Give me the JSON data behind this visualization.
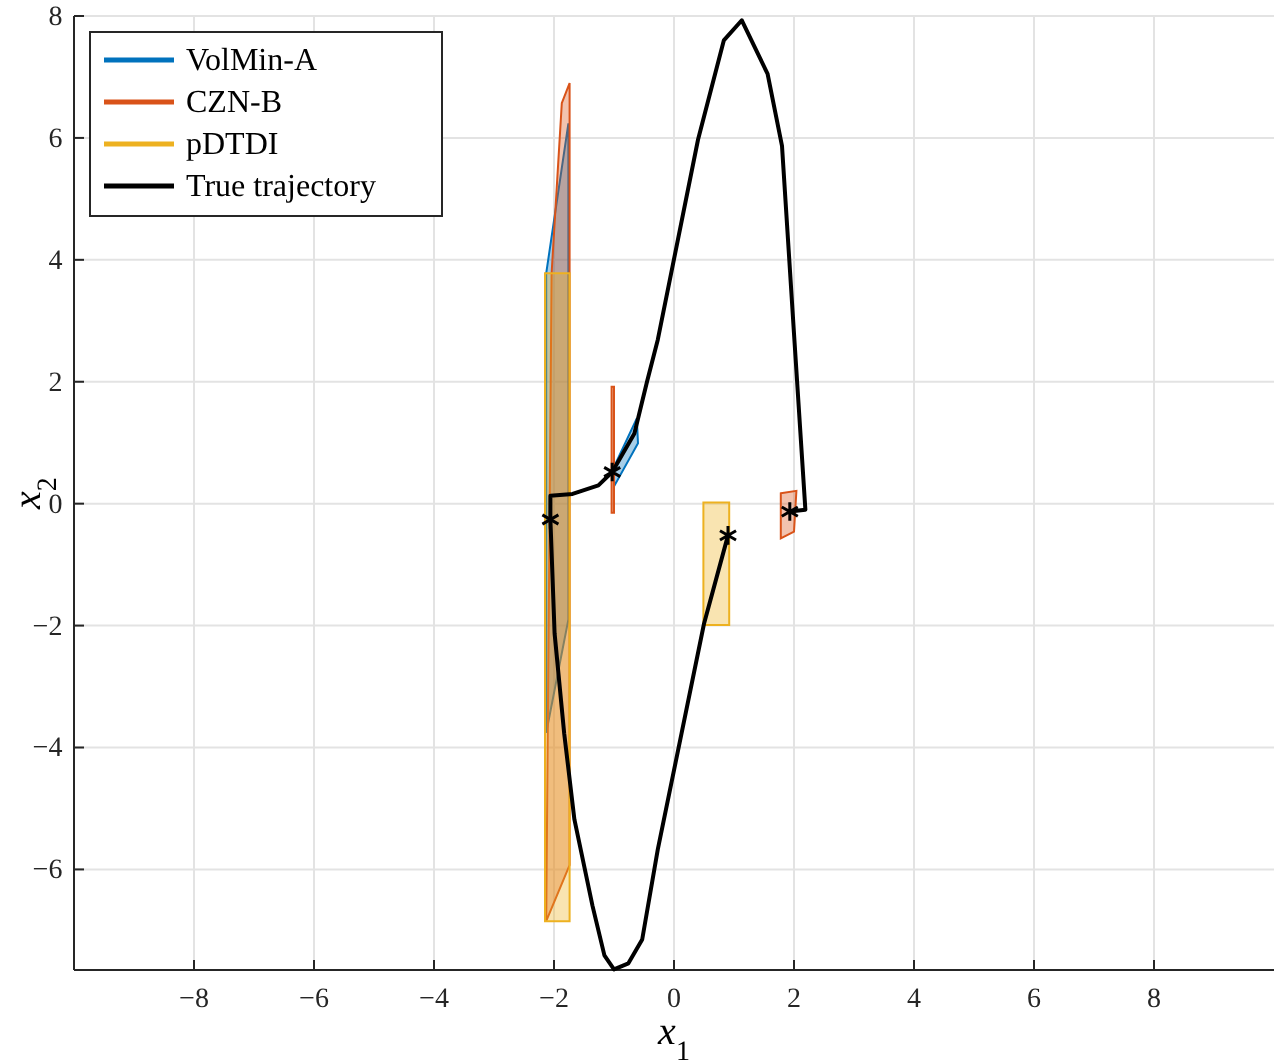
{
  "chart_data": {
    "type": "line",
    "xlabel": "x$_{1}$",
    "ylabel": "x$_{2}$",
    "xlim": [
      -10,
      10
    ],
    "ylim": [
      -7.65,
      8
    ],
    "xticks": [
      -8,
      -6,
      -4,
      -2,
      0,
      2,
      4,
      6,
      8
    ],
    "yticks": [
      -6,
      -4,
      -2,
      0,
      2,
      4,
      6,
      8
    ],
    "grid": true,
    "legend": "top left",
    "series": [
      {
        "name": "VolMin-A",
        "type": "area",
        "color": "#0072bd",
        "x": [
          -1.76,
          -2.13,
          -2.13,
          -1.76,
          null,
          -1.02,
          -0.62,
          -0.6,
          -0.99
        ],
        "values": [
          6.24,
          3.78,
          -3.76,
          -1.9,
          null,
          0.56,
          1.4,
          0.99,
          0.3
        ]
      },
      {
        "name": "CZN-B",
        "type": "area",
        "color": "#d95319",
        "x": [
          -1.87,
          -1.74,
          -1.74,
          -2.13,
          -2.04,
          null,
          -1.04,
          -1.0,
          -1.0,
          -1.04,
          null,
          1.78,
          2.04,
          2.0,
          1.78
        ],
        "values": [
          6.57,
          6.9,
          -5.93,
          -6.85,
          3.78,
          null,
          1.92,
          1.92,
          -0.15,
          -0.15,
          null,
          0.17,
          0.21,
          -0.46,
          -0.57
        ]
      },
      {
        "name": "pDTDI",
        "type": "area",
        "color": "#edb120",
        "x": [
          -2.15,
          -1.74,
          -1.74,
          -2.15,
          null,
          0.49,
          0.92,
          0.92,
          0.49
        ],
        "values": [
          3.78,
          3.78,
          -6.85,
          -6.85,
          null,
          0.02,
          0.02,
          -1.99,
          -1.99
        ]
      },
      {
        "name": "True trajectory",
        "color": "#000000",
        "x": [
          0.9,
          0.5,
          -0.27,
          -0.53,
          -0.76,
          -1.0,
          -1.16,
          -1.36,
          -1.66,
          -1.83,
          -1.99,
          -2.06,
          -2.06,
          -1.69,
          -1.26,
          -1.03,
          -0.66,
          -0.45,
          -0.27,
          0.4,
          0.83,
          1.13,
          1.56,
          1.8,
          2.0,
          2.19,
          1.93
        ],
        "values": [
          -0.52,
          -1.97,
          -5.67,
          -7.15,
          -7.54,
          -7.64,
          -7.41,
          -6.59,
          -5.18,
          -3.77,
          -2.13,
          -0.26,
          0.13,
          0.16,
          0.3,
          0.52,
          1.15,
          2.0,
          2.69,
          5.97,
          7.6,
          7.93,
          7.05,
          5.87,
          2.79,
          -0.1,
          -0.13
        ]
      },
      {
        "type": "scatter",
        "marker": "cross",
        "color": "#000000",
        "x": [
          -2.06,
          -1.03,
          0.9,
          1.93
        ],
        "values": [
          -0.26,
          0.52,
          -0.52,
          -0.13
        ]
      }
    ]
  }
}
